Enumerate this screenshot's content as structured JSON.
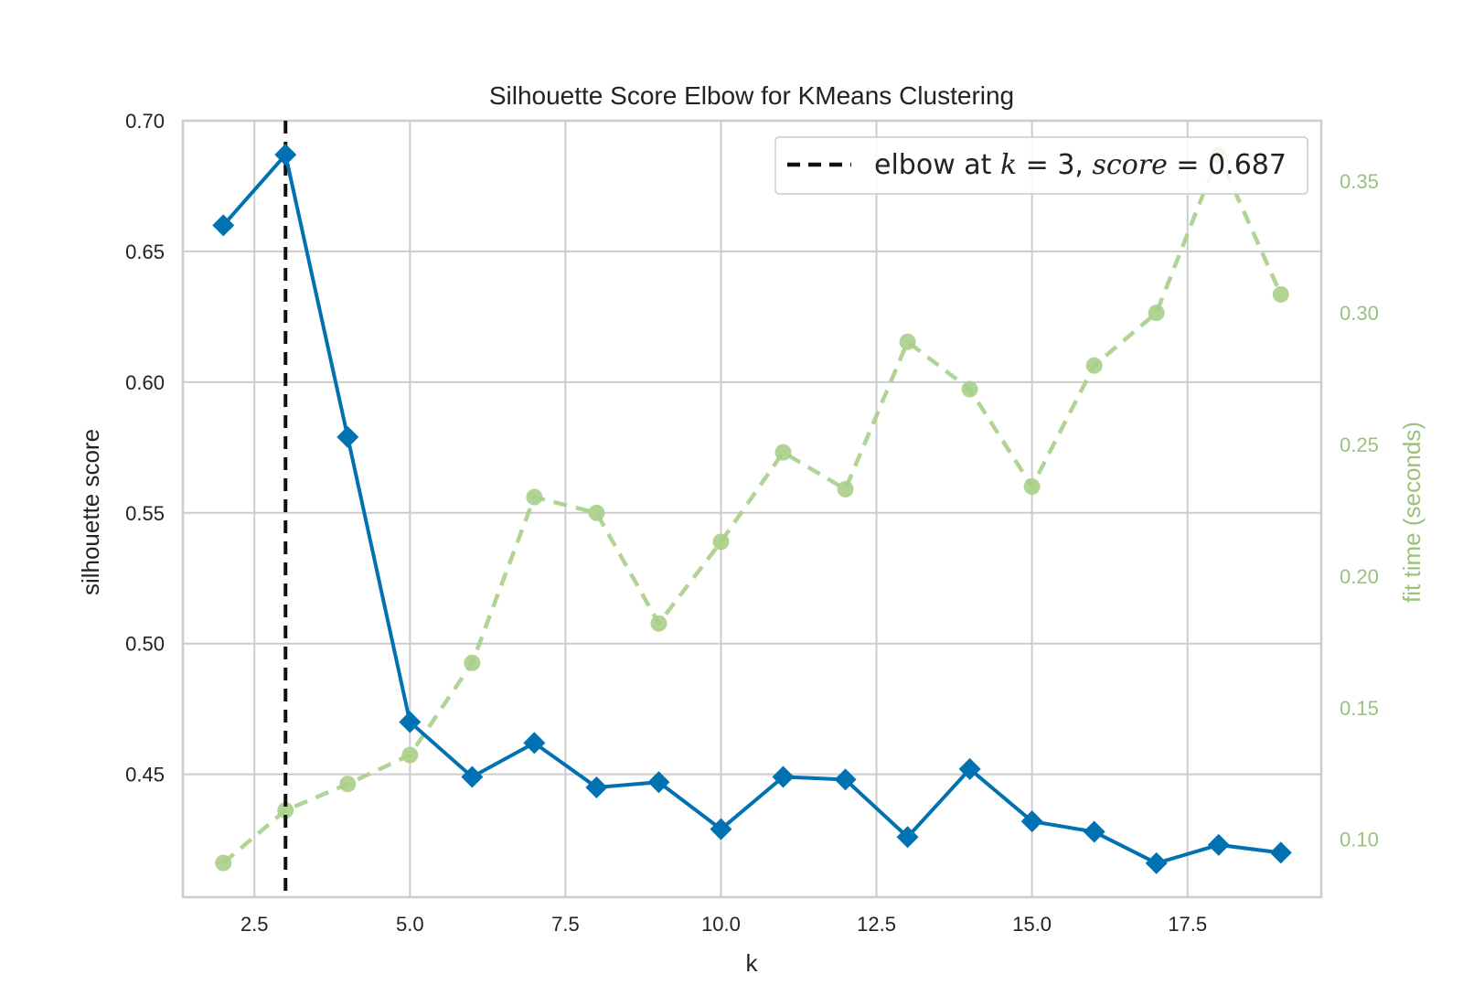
{
  "chart_data": {
    "type": "line",
    "title": "Silhouette Score Elbow for KMeans Clustering",
    "xlabel": "k",
    "ylabel": "silhouette score",
    "y2label": "fit time (seconds)",
    "xlim": [
      1.35,
      19.65
    ],
    "ylim": [
      0.403,
      0.7
    ],
    "y2lim": [
      0.078,
      0.373
    ],
    "x_ticks": [
      2.5,
      5.0,
      7.5,
      10.0,
      12.5,
      15.0,
      17.5
    ],
    "x_tick_labels": [
      "2.5",
      "5.0",
      "7.5",
      "10.0",
      "12.5",
      "15.0",
      "17.5"
    ],
    "y_ticks": [
      0.45,
      0.5,
      0.55,
      0.6,
      0.65,
      0.7
    ],
    "y_tick_labels": [
      "0.45",
      "0.50",
      "0.55",
      "0.60",
      "0.65",
      "0.70"
    ],
    "y2_ticks": [
      0.1,
      0.15,
      0.2,
      0.25,
      0.3,
      0.35
    ],
    "y2_tick_labels": [
      "0.10",
      "0.15",
      "0.20",
      "0.25",
      "0.30",
      "0.35"
    ],
    "grid": true,
    "legend_position": "top-right",
    "x": [
      2,
      3,
      4,
      5,
      6,
      7,
      8,
      9,
      10,
      11,
      12,
      13,
      14,
      15,
      16,
      17,
      18,
      19
    ],
    "series": [
      {
        "name": "silhouette score",
        "axis": "left",
        "marker": "diamond",
        "color": "#0072b2",
        "values": [
          0.66,
          0.687,
          0.579,
          0.47,
          0.449,
          0.462,
          0.445,
          0.447,
          0.429,
          0.449,
          0.448,
          0.426,
          0.452,
          0.432,
          0.428,
          0.416,
          0.423,
          0.42
        ]
      },
      {
        "name": "fit time",
        "axis": "right",
        "marker": "circle",
        "color": "#a9cf8a",
        "values": [
          0.091,
          0.111,
          0.121,
          0.132,
          0.167,
          0.23,
          0.224,
          0.182,
          0.213,
          0.247,
          0.233,
          0.289,
          0.271,
          0.234,
          0.28,
          0.3,
          0.36,
          0.307
        ]
      }
    ],
    "elbow": {
      "k": 3,
      "score": 0.687,
      "legend_prefix": "elbow at ",
      "legend_k": "k",
      "legend_k_value": " = 3, ",
      "legend_score": "score",
      "legend_score_value": " = 0.687",
      "color": "#111111"
    },
    "colors": {
      "axis_text": "#222222",
      "right_axis_text": "#9ac27b",
      "grid": "#cccccc",
      "frame": "#cccccc"
    }
  }
}
